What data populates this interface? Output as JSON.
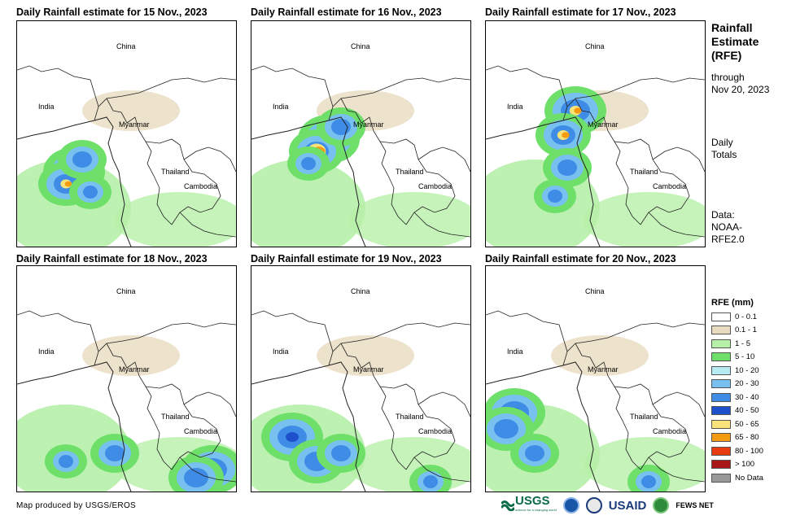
{
  "panels": [
    {
      "title": "Daily Rainfall estimate for 15 Nov., 2023",
      "heavy": "west",
      "intensity": 0.55
    },
    {
      "title": "Daily Rainfall estimate for 16 Nov., 2023",
      "heavy": "center",
      "intensity": 0.95
    },
    {
      "title": "Daily Rainfall estimate for 17 Nov., 2023",
      "heavy": "north",
      "intensity": 0.6
    },
    {
      "title": "Daily Rainfall estimate for 18 Nov., 2023",
      "heavy": "southeast",
      "intensity": 0.4
    },
    {
      "title": "Daily Rainfall estimate for 19 Nov., 2023",
      "heavy": "southwest",
      "intensity": 0.3
    },
    {
      "title": "Daily Rainfall estimate for 20 Nov., 2023",
      "heavy": "west-coast",
      "intensity": 0.35
    }
  ],
  "map_labels": {
    "china": "China",
    "india": "India",
    "myanmar": "Myanmar",
    "thailand": "Thailand",
    "cambodia": "Cambodia"
  },
  "sidebar": {
    "title_lines": [
      "Rainfall",
      "Estimate",
      "(RFE)"
    ],
    "through_lines": [
      "through",
      "Nov 20, 2023"
    ],
    "totals_lines": [
      "Daily",
      "Totals"
    ],
    "data_lines": [
      "Data:",
      "NOAA-",
      "RFE2.0"
    ]
  },
  "legend": {
    "title": "RFE (mm)",
    "items": [
      {
        "label": "0 - 0.1",
        "color": "#ffffff"
      },
      {
        "label": "0.1 - 1",
        "color": "#e8dcc0"
      },
      {
        "label": "1 - 5",
        "color": "#b6f0a8"
      },
      {
        "label": "5 - 10",
        "color": "#6ee06a"
      },
      {
        "label": "10 - 20",
        "color": "#b8ecf4"
      },
      {
        "label": "20 - 30",
        "color": "#78c0f0"
      },
      {
        "label": "30 - 40",
        "color": "#3e8ce6"
      },
      {
        "label": "40 - 50",
        "color": "#1e50cc"
      },
      {
        "label": "50 - 65",
        "color": "#f8e27a"
      },
      {
        "label": "65 - 80",
        "color": "#f49a10"
      },
      {
        "label": "80 - 100",
        "color": "#e83c10"
      },
      {
        "label": "> 100",
        "color": "#a81818"
      },
      {
        "label": "No Data",
        "color": "#999999"
      }
    ]
  },
  "credit": "Map produced by USGS/EROS",
  "logos": {
    "usgs": "USGS",
    "usgs_tagline": "science for a changing world",
    "usaid": "USAID",
    "fewsnet": "FEWS NET"
  }
}
